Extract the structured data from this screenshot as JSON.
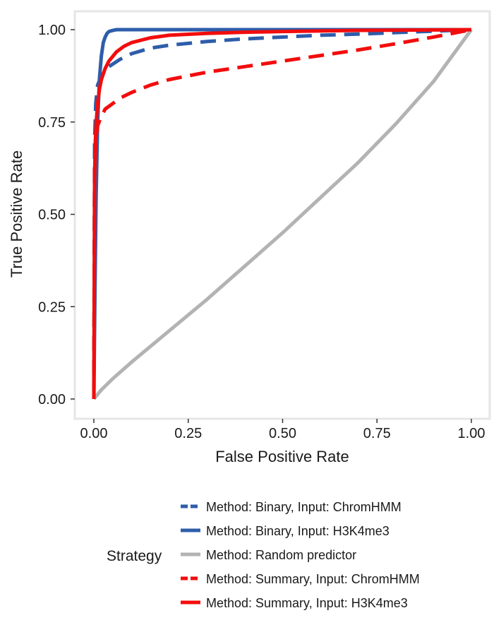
{
  "chart_data": {
    "type": "line",
    "title": "",
    "xlabel": "False Positive Rate",
    "ylabel": "True Positive Rate",
    "xlim": [
      0,
      1
    ],
    "ylim": [
      0,
      1
    ],
    "x_ticks": [
      "0.00",
      "0.25",
      "0.50",
      "0.75",
      "1.00"
    ],
    "y_ticks": [
      "0.00",
      "0.25",
      "0.50",
      "0.75",
      "1.00"
    ],
    "grid": false,
    "legend": {
      "title": "Strategy",
      "placement": "bottom"
    },
    "series": [
      {
        "name": "Method: Binary, Input: ChromHMM",
        "color": "#2e5daa",
        "dash": "dashed",
        "x": [
          0,
          0.002,
          0.005,
          0.01,
          0.02,
          0.04,
          0.07,
          0.1,
          0.15,
          0.2,
          0.3,
          0.4,
          0.5,
          0.6,
          0.7,
          0.8,
          0.9,
          1.0
        ],
        "y": [
          0,
          0.7,
          0.8,
          0.85,
          0.875,
          0.9,
          0.92,
          0.935,
          0.95,
          0.958,
          0.968,
          0.975,
          0.98,
          0.985,
          0.988,
          0.992,
          0.996,
          1.0
        ]
      },
      {
        "name": "Method: Binary, Input: H3K4me3",
        "color": "#2e5daa",
        "dash": "solid",
        "x": [
          0,
          0.003,
          0.006,
          0.01,
          0.015,
          0.02,
          0.025,
          0.03,
          0.035,
          0.04,
          0.05,
          0.06,
          0.08,
          0.1,
          0.2,
          0.5,
          1.0
        ],
        "y": [
          0,
          0.3,
          0.55,
          0.75,
          0.87,
          0.93,
          0.965,
          0.98,
          0.99,
          0.995,
          0.998,
          1.0,
          1.0,
          1.0,
          1.0,
          1.0,
          1.0
        ]
      },
      {
        "name": "Method: Random predictor",
        "color": "#b3b3b3",
        "dash": "solid",
        "x": [
          0,
          0.02,
          0.05,
          0.1,
          0.2,
          0.3,
          0.4,
          0.5,
          0.6,
          0.7,
          0.8,
          0.9,
          1.0
        ],
        "y": [
          0,
          0.025,
          0.055,
          0.1,
          0.185,
          0.27,
          0.36,
          0.45,
          0.545,
          0.64,
          0.745,
          0.86,
          1.0
        ]
      },
      {
        "name": "Method: Summary, Input: ChromHMM",
        "color": "#f20d0d",
        "dash": "dashed",
        "x": [
          0,
          0.002,
          0.005,
          0.01,
          0.02,
          0.03,
          0.05,
          0.07,
          0.1,
          0.15,
          0.2,
          0.3,
          0.4,
          0.5,
          0.6,
          0.7,
          0.8,
          0.9,
          1.0
        ],
        "y": [
          0,
          0.62,
          0.7,
          0.74,
          0.765,
          0.785,
          0.8,
          0.815,
          0.83,
          0.85,
          0.865,
          0.885,
          0.9,
          0.915,
          0.93,
          0.945,
          0.962,
          0.98,
          1.0
        ]
      },
      {
        "name": "Method: Summary, Input: H3K4me3",
        "color": "#f20d0d",
        "dash": "solid",
        "x": [
          0,
          0.002,
          0.004,
          0.007,
          0.01,
          0.015,
          0.02,
          0.03,
          0.04,
          0.06,
          0.08,
          0.1,
          0.15,
          0.2,
          0.3,
          0.4,
          0.5,
          0.7,
          1.0
        ],
        "y": [
          0,
          0.6,
          0.7,
          0.76,
          0.8,
          0.84,
          0.865,
          0.895,
          0.915,
          0.94,
          0.955,
          0.965,
          0.978,
          0.985,
          0.99,
          0.993,
          0.995,
          0.998,
          1.0
        ]
      }
    ]
  }
}
